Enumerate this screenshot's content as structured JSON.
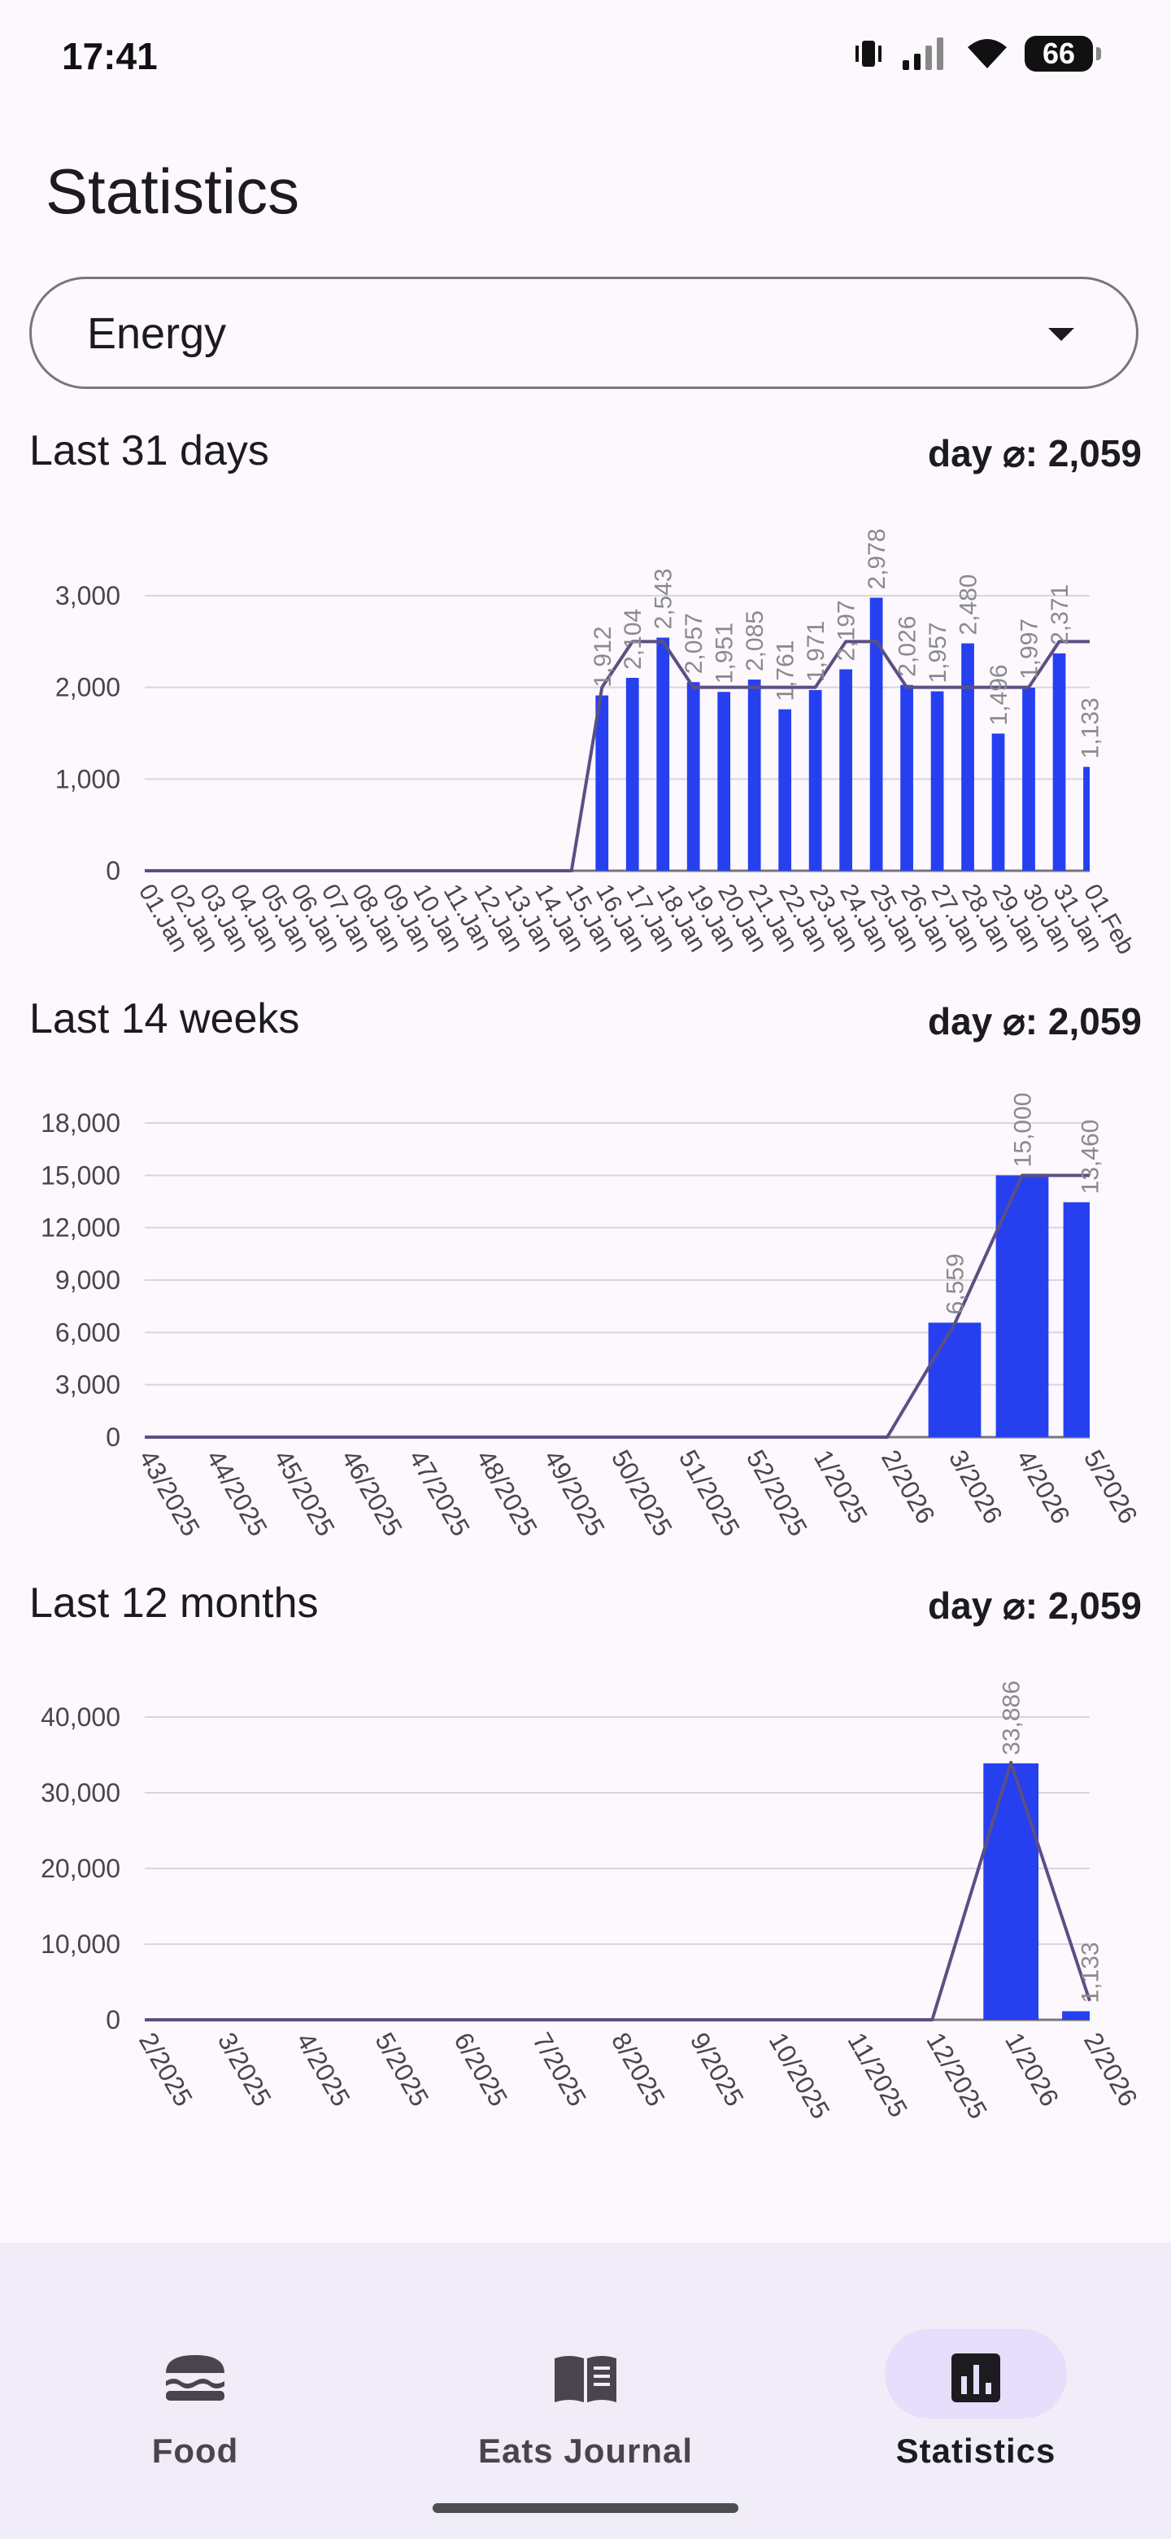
{
  "status_bar": {
    "time": "17:41",
    "battery": "66"
  },
  "page": {
    "title": "Statistics"
  },
  "dropdown": {
    "selected": "Energy"
  },
  "colors": {
    "bar": "#2640f0",
    "line": "#5b4f85",
    "grid": "#d8d5dd",
    "label": "#8a8a8a",
    "tick": "#49454f"
  },
  "sections": [
    {
      "title": "Last 31 days",
      "avg": "day ⌀: 2,059"
    },
    {
      "title": "Last 14 weeks",
      "avg": "day ⌀: 2,059"
    },
    {
      "title": "Last 12 months",
      "avg": "day ⌀: 2,059"
    }
  ],
  "chart_data": [
    {
      "type": "bar",
      "title": "Last 31 days",
      "ylim": [
        0,
        3000
      ],
      "yticks": [
        "0",
        "1,000",
        "2,000",
        "3,000"
      ],
      "categories": [
        "01.Jan",
        "02.Jan",
        "03.Jan",
        "04.Jan",
        "05.Jan",
        "06.Jan",
        "07.Jan",
        "08.Jan",
        "09.Jan",
        "10.Jan",
        "11.Jan",
        "12.Jan",
        "13.Jan",
        "14.Jan",
        "15.Jan",
        "16.Jan",
        "17.Jan",
        "18.Jan",
        "19.Jan",
        "20.Jan",
        "21.Jan",
        "22.Jan",
        "23.Jan",
        "24.Jan",
        "25.Jan",
        "26.Jan",
        "27.Jan",
        "28.Jan",
        "29.Jan",
        "30.Jan",
        "31.Jan",
        "01.Feb"
      ],
      "values": [
        0,
        0,
        0,
        0,
        0,
        0,
        0,
        0,
        0,
        0,
        0,
        0,
        0,
        0,
        0,
        1912,
        2104,
        2543,
        2057,
        1951,
        2085,
        1761,
        1971,
        2197,
        2978,
        2026,
        1957,
        2480,
        1496,
        1997,
        2371,
        1133
      ],
      "value_labels": [
        "",
        "",
        "",
        "",
        "",
        "",
        "",
        "",
        "",
        "",
        "",
        "",
        "",
        "",
        "",
        "1,912",
        "2,104",
        "2,543",
        "2,057",
        "1,951",
        "2,085",
        "1,761",
        "1,971",
        "2,197",
        "2,978",
        "2,026",
        "1,957",
        "2,480",
        "1,496",
        "1,997",
        "2,371",
        "1,133"
      ],
      "line": [
        0,
        0,
        0,
        0,
        0,
        0,
        0,
        0,
        0,
        0,
        0,
        0,
        0,
        0,
        0,
        2000,
        2500,
        2500,
        2000,
        2000,
        2000,
        2000,
        2000,
        2500,
        2500,
        2000,
        2000,
        2000,
        2000,
        2000,
        2500,
        2500
      ]
    },
    {
      "type": "bar",
      "title": "Last 14 weeks",
      "ylim": [
        0,
        18000
      ],
      "yticks": [
        "0",
        "3,000",
        "6,000",
        "9,000",
        "12,000",
        "15,000",
        "18,000"
      ],
      "categories": [
        "43/2025",
        "44/2025",
        "45/2025",
        "46/2025",
        "47/2025",
        "48/2025",
        "49/2025",
        "50/2025",
        "51/2025",
        "52/2025",
        "1/2025",
        "2/2026",
        "3/2026",
        "4/2026",
        "5/2026"
      ],
      "values": [
        0,
        0,
        0,
        0,
        0,
        0,
        0,
        0,
        0,
        0,
        0,
        0,
        6559,
        15000,
        13460
      ],
      "value_labels": [
        "",
        "",
        "",
        "",
        "",
        "",
        "",
        "",
        "",
        "",
        "",
        "",
        "6,559",
        "15,000",
        "13,460"
      ],
      "line": [
        0,
        0,
        0,
        0,
        0,
        0,
        0,
        0,
        0,
        0,
        0,
        0,
        6500,
        15000,
        15000
      ]
    },
    {
      "type": "bar",
      "title": "Last 12 months",
      "ylim": [
        0,
        40000
      ],
      "yticks": [
        "0",
        "10,000",
        "20,000",
        "30,000",
        "40,000"
      ],
      "categories": [
        "2/2025",
        "3/2025",
        "4/2025",
        "5/2025",
        "6/2025",
        "7/2025",
        "8/2025",
        "9/2025",
        "10/2025",
        "11/2025",
        "12/2025",
        "1/2026",
        "2/2026"
      ],
      "values": [
        0,
        0,
        0,
        0,
        0,
        0,
        0,
        0,
        0,
        0,
        0,
        33886,
        1133
      ],
      "value_labels": [
        "",
        "",
        "",
        "",
        "",
        "",
        "",
        "",
        "",
        "",
        "",
        "33,886",
        "1,133"
      ],
      "line": [
        0,
        0,
        0,
        0,
        0,
        0,
        0,
        0,
        0,
        0,
        0,
        34000,
        2500
      ]
    }
  ],
  "nav": {
    "items": [
      {
        "label": "Food",
        "icon": "burger-icon"
      },
      {
        "label": "Eats Journal",
        "icon": "book-icon"
      },
      {
        "label": "Statistics",
        "icon": "bar-chart-icon"
      }
    ]
  }
}
